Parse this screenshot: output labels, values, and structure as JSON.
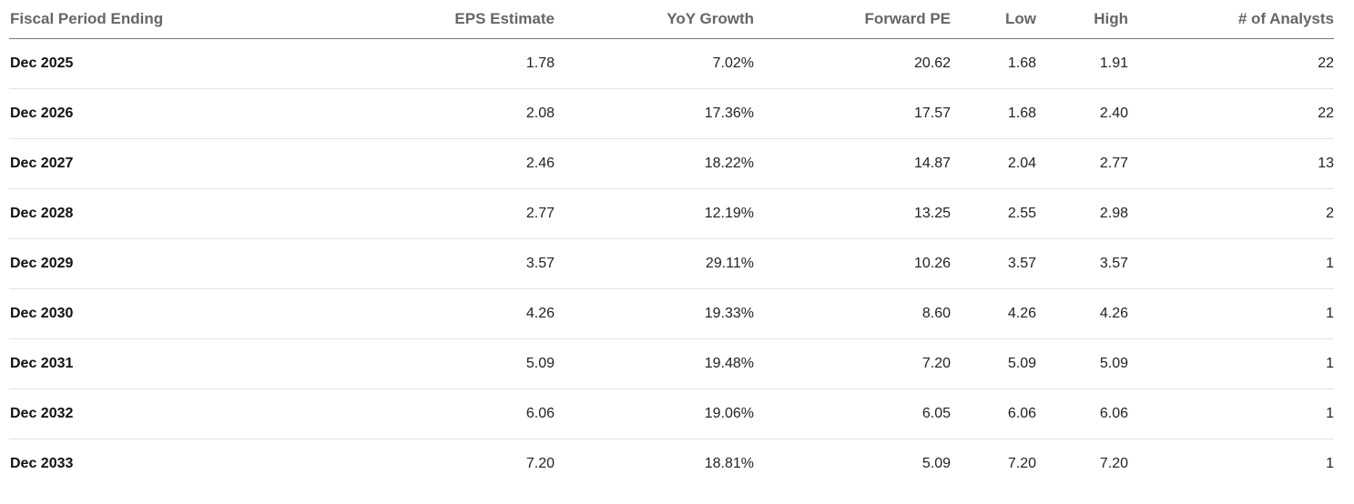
{
  "table": {
    "headers": {
      "period": "Fiscal Period Ending",
      "eps": "EPS Estimate",
      "yoy": "YoY Growth",
      "fpe": "Forward PE",
      "low": "Low",
      "high": "High",
      "analysts": "# of Analysts"
    },
    "rows": [
      {
        "period": "Dec 2025",
        "eps": "1.78",
        "yoy": "7.02%",
        "fpe": "20.62",
        "low": "1.68",
        "high": "1.91",
        "analysts": "22"
      },
      {
        "period": "Dec 2026",
        "eps": "2.08",
        "yoy": "17.36%",
        "fpe": "17.57",
        "low": "1.68",
        "high": "2.40",
        "analysts": "22"
      },
      {
        "period": "Dec 2027",
        "eps": "2.46",
        "yoy": "18.22%",
        "fpe": "14.87",
        "low": "2.04",
        "high": "2.77",
        "analysts": "13"
      },
      {
        "period": "Dec 2028",
        "eps": "2.77",
        "yoy": "12.19%",
        "fpe": "13.25",
        "low": "2.55",
        "high": "2.98",
        "analysts": "2"
      },
      {
        "period": "Dec 2029",
        "eps": "3.57",
        "yoy": "29.11%",
        "fpe": "10.26",
        "low": "3.57",
        "high": "3.57",
        "analysts": "1"
      },
      {
        "period": "Dec 2030",
        "eps": "4.26",
        "yoy": "19.33%",
        "fpe": "8.60",
        "low": "4.26",
        "high": "4.26",
        "analysts": "1"
      },
      {
        "period": "Dec 2031",
        "eps": "5.09",
        "yoy": "19.48%",
        "fpe": "7.20",
        "low": "5.09",
        "high": "5.09",
        "analysts": "1"
      },
      {
        "period": "Dec 2032",
        "eps": "6.06",
        "yoy": "19.06%",
        "fpe": "6.05",
        "low": "6.06",
        "high": "6.06",
        "analysts": "1"
      },
      {
        "period": "Dec 2033",
        "eps": "7.20",
        "yoy": "18.81%",
        "fpe": "5.09",
        "low": "7.20",
        "high": "7.20",
        "analysts": "1"
      }
    ]
  }
}
